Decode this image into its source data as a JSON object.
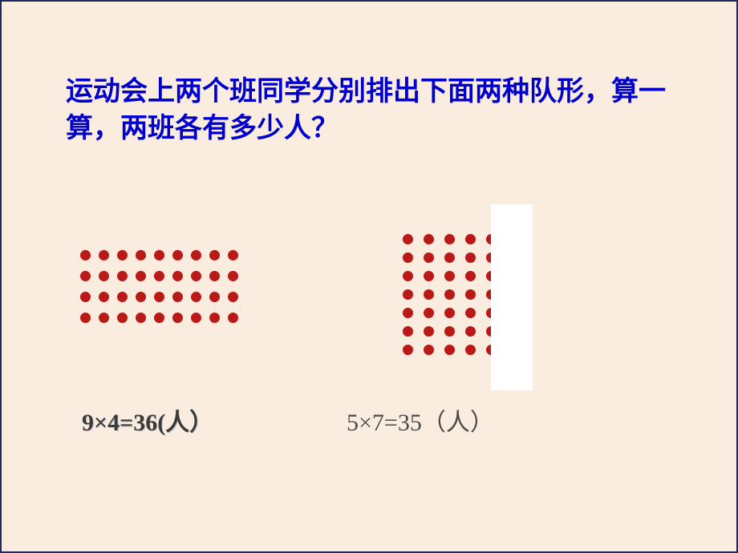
{
  "question": "运动会上两个班同学分别排出下面两种队形，算一算，两班各有多少人？",
  "left_grid": {
    "rows": 4,
    "cols": 9,
    "dot_color": "#b91a18",
    "dot_size": 13,
    "h_gap": 10,
    "v_gap": 13
  },
  "right_grid": {
    "rows": 7,
    "cols": 5,
    "dot_color": "#b91a18",
    "dot_size": 13,
    "h_gap": 13,
    "v_gap": 10
  },
  "left_caption": "9×4=36(人）",
  "right_caption": "5×7=35（人）",
  "colors": {
    "page_bg": "#faede0",
    "page_border": "#1a2a5a",
    "question_text": "#0000cd",
    "dot": "#b91a18",
    "overlay": "#ffffff",
    "left_caption": "#3a3a3a",
    "right_caption": "#4a4a4a"
  },
  "fonts": {
    "question_size": 34,
    "caption_size": 30
  }
}
